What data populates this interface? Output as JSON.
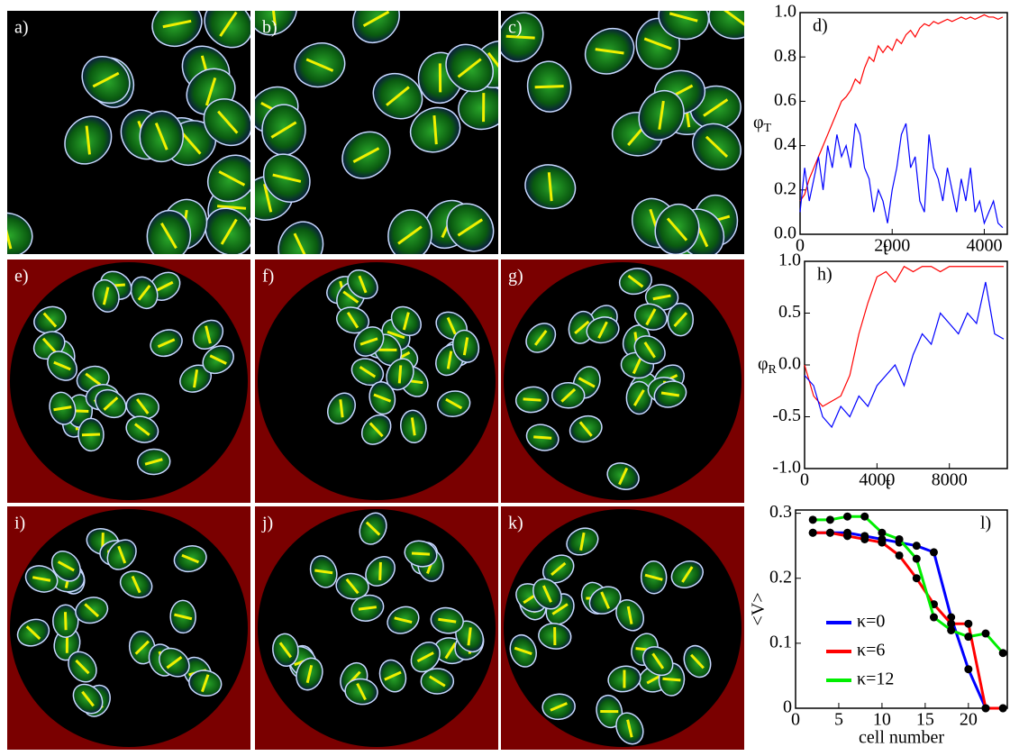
{
  "panels": [
    {
      "label": "a)"
    },
    {
      "label": "b)"
    },
    {
      "label": "c)"
    },
    {
      "label": "e)"
    },
    {
      "label": "f)"
    },
    {
      "label": "g)"
    },
    {
      "label": "i)"
    },
    {
      "label": "j)"
    },
    {
      "label": "k)"
    }
  ],
  "chart_data": [
    {
      "type": "line",
      "label": "d)",
      "ylabel": "φ",
      "ylabel_sub": "T",
      "xlabel": "t",
      "x": [
        0,
        100,
        200,
        300,
        400,
        500,
        600,
        700,
        800,
        900,
        1000,
        1100,
        1200,
        1300,
        1400,
        1500,
        1600,
        1700,
        1800,
        1900,
        2000,
        2100,
        2200,
        2300,
        2400,
        2500,
        2600,
        2700,
        2800,
        2900,
        3000,
        3100,
        3200,
        3300,
        3400,
        3500,
        3600,
        3700,
        3800,
        3900,
        4000,
        4100,
        4200,
        4300,
        4400
      ],
      "series": [
        {
          "color": "#ff0000",
          "values": [
            0.15,
            0.18,
            0.25,
            0.3,
            0.35,
            0.4,
            0.45,
            0.5,
            0.55,
            0.6,
            0.62,
            0.65,
            0.7,
            0.68,
            0.75,
            0.8,
            0.78,
            0.85,
            0.82,
            0.85,
            0.83,
            0.88,
            0.86,
            0.9,
            0.92,
            0.89,
            0.93,
            0.95,
            0.94,
            0.96,
            0.95,
            0.96,
            0.97,
            0.96,
            0.97,
            0.98,
            0.97,
            0.98,
            0.97,
            0.98,
            0.99,
            0.98,
            0.98,
            0.97,
            0.98
          ]
        },
        {
          "color": "#0000ff",
          "values": [
            0.1,
            0.3,
            0.15,
            0.25,
            0.35,
            0.2,
            0.4,
            0.3,
            0.45,
            0.35,
            0.4,
            0.3,
            0.5,
            0.45,
            0.3,
            0.25,
            0.1,
            0.2,
            0.15,
            0.05,
            0.2,
            0.3,
            0.45,
            0.5,
            0.3,
            0.35,
            0.15,
            0.1,
            0.45,
            0.3,
            0.25,
            0.15,
            0.3,
            0.2,
            0.1,
            0.25,
            0.15,
            0.3,
            0.1,
            0.15,
            0.05,
            0.1,
            0.15,
            0.05,
            0.03
          ]
        }
      ],
      "xlim": [
        0,
        4500
      ],
      "xticks": [
        0,
        2000,
        4000
      ],
      "ylim": [
        0,
        1
      ],
      "yticks": [
        {
          "value": 0,
          "label": "0.0"
        },
        {
          "value": 0.2,
          "label": "0.2"
        },
        {
          "value": 0.4,
          "label": "0.4"
        },
        {
          "value": 0.6,
          "label": "0.6"
        },
        {
          "value": 0.8,
          "label": "0.8"
        },
        {
          "value": 1,
          "label": "1.0"
        }
      ]
    },
    {
      "type": "line",
      "label": "h)",
      "ylabel": "φ",
      "ylabel_sub": "R",
      "xlabel": "t",
      "x": [
        0,
        500,
        1000,
        1500,
        2000,
        2500,
        3000,
        3500,
        4000,
        4500,
        5000,
        5500,
        6000,
        6500,
        7000,
        7500,
        8000,
        8500,
        9000,
        9500,
        10000,
        10500,
        11000
      ],
      "series": [
        {
          "color": "#ff0000",
          "values": [
            0.0,
            -0.3,
            -0.4,
            -0.35,
            -0.3,
            -0.1,
            0.3,
            0.6,
            0.85,
            0.9,
            0.8,
            0.95,
            0.9,
            0.95,
            0.95,
            0.9,
            0.95,
            0.95,
            0.95,
            0.95,
            0.95,
            0.95,
            0.95
          ]
        },
        {
          "color": "#0000ff",
          "values": [
            -0.1,
            -0.2,
            -0.5,
            -0.6,
            -0.4,
            -0.5,
            -0.3,
            -0.4,
            -0.2,
            -0.1,
            0.0,
            -0.2,
            0.1,
            0.3,
            0.2,
            0.5,
            0.4,
            0.3,
            0.5,
            0.4,
            0.8,
            0.3,
            0.25
          ]
        }
      ],
      "xlim": [
        0,
        11200
      ],
      "xticks": [
        0,
        4000,
        8000
      ],
      "ylim": [
        -1,
        1
      ],
      "yticks": [
        {
          "value": -1,
          "label": "-1.0"
        },
        {
          "value": -0.5,
          "label": "-0.5"
        },
        {
          "value": 0,
          "label": "0.0"
        },
        {
          "value": 0.5,
          "label": "0.5"
        },
        {
          "value": 1,
          "label": "1.0"
        }
      ]
    },
    {
      "type": "line-markers",
      "label": "l)",
      "ylabel": "<V>",
      "xlabel": "cell number",
      "marker_color": "#000000",
      "x": [
        2,
        4,
        6,
        8,
        10,
        12,
        14,
        16,
        18,
        20,
        22,
        24
      ],
      "series": [
        {
          "name": "κ=0",
          "color": "#0000ff",
          "values": [
            0.27,
            0.27,
            0.27,
            0.265,
            0.26,
            0.255,
            0.25,
            0.24,
            0.14,
            0.06,
            0,
            0
          ]
        },
        {
          "name": "κ=6",
          "color": "#ff0000",
          "values": [
            0.27,
            0.27,
            0.265,
            0.26,
            0.255,
            0.235,
            0.2,
            0.16,
            0.13,
            0.13,
            0,
            0
          ]
        },
        {
          "name": "κ=12",
          "color": "#00ee00",
          "values": [
            0.29,
            0.29,
            0.295,
            0.295,
            0.27,
            0.26,
            0.23,
            0.14,
            0.12,
            0.11,
            0.115,
            0.085
          ]
        }
      ],
      "xlim": [
        0,
        24.5
      ],
      "xticks": [
        0,
        5,
        10,
        15,
        20
      ],
      "ylim": [
        0,
        0.305
      ],
      "yticks": [
        0,
        0.1,
        0.2,
        0.3
      ]
    }
  ]
}
